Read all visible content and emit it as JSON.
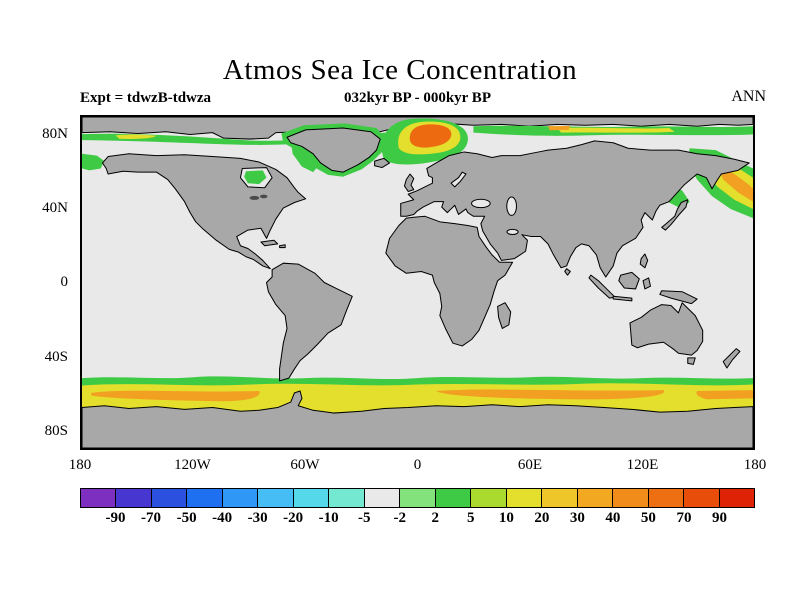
{
  "title": "Atmos Sea Ice Concentration",
  "header": {
    "experiment": "Expt = tdwzB-tdwza",
    "period": "032kyr BP - 000kyr BP",
    "season": "ANN"
  },
  "map": {
    "lat_labels": [
      "80N",
      "40N",
      "0",
      "40S",
      "80S"
    ],
    "lon_labels": [
      "180",
      "120W",
      "60W",
      "0",
      "60E",
      "120E",
      "180"
    ]
  },
  "colorbar": {
    "tick_labels": [
      "-90",
      "-70",
      "-50",
      "-40",
      "-30",
      "-20",
      "-10",
      "-5",
      "-2",
      "2",
      "5",
      "10",
      "20",
      "30",
      "40",
      "50",
      "70",
      "90"
    ],
    "segment_colors": [
      "#7d2fc0",
      "#4836d0",
      "#2b50e0",
      "#1f70f0",
      "#2f97f5",
      "#46bef5",
      "#55d8ea",
      "#74e8d0",
      "#e9e9e9",
      "#84e27c",
      "#3fca46",
      "#aada2e",
      "#e3df2c",
      "#eec62a",
      "#f2a821",
      "#f18c1a",
      "#ee6e12",
      "#e84e0a",
      "#dd2206"
    ]
  },
  "colors": {
    "land": "#a8a8a8",
    "ocean": "#e9e9e9",
    "lake": "#4a4a4a",
    "ice_green": "#3fca46",
    "ice_yellow": "#e3df2c",
    "ice_orange": "#f2a021",
    "ice_orange_deep": "#ed6a10"
  },
  "chart_data": {
    "type": "heatmap",
    "title": "Atmos Sea Ice Concentration",
    "subtitle": "032kyr BP - 000kyr BP",
    "experiment": "Expt = tdwzB-tdwza",
    "season": "ANN",
    "projection": "equirectangular world map",
    "lon_range": [
      -180,
      180
    ],
    "lat_range": [
      -90,
      90
    ],
    "lon_ticks": [
      -180,
      -120,
      -60,
      0,
      60,
      120,
      180
    ],
    "lat_ticks": [
      80,
      40,
      0,
      -40,
      -80
    ],
    "contour_levels": [
      -90,
      -70,
      -50,
      -40,
      -30,
      -20,
      -10,
      -5,
      -2,
      2,
      5,
      10,
      20,
      30,
      40,
      50,
      70,
      90
    ],
    "legend_position": "bottom",
    "features": [
      {
        "region": "Most of global ocean",
        "value": "-2 to 2 (near zero difference)"
      },
      {
        "region": "Greenland / Norwegian / Barents Sea (~72-84N, 15W-30E)",
        "value": "40 to 70 with core near 70"
      },
      {
        "region": "Arctic fringe along ~80-87N (Canadian and Siberian sectors)",
        "value": "2 to 30"
      },
      {
        "region": "Northwest Pacific: Sea of Okhotsk / Bering (~45-65N, 150E-180)",
        "value": "10 to 50"
      },
      {
        "region": "Baffin Bay / Davis Strait and Hudson Bay",
        "value": "2 to 10"
      },
      {
        "region": "Southern Ocean circumpolar band (~50-65S)",
        "value": "5 to 50, orange cores 30-50"
      },
      {
        "region": "Land and polar caps",
        "value": "masked gray"
      }
    ]
  }
}
